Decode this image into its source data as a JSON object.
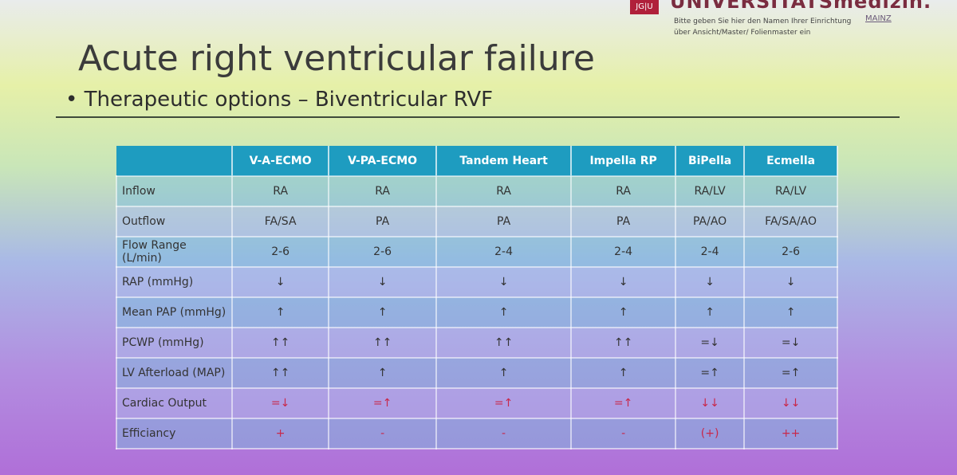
{
  "logo": {
    "mark": "JG|U",
    "name": "UNIVERSITÄTSmedizin.",
    "note": "Bitte geben Sie hier den Namen Ihrer Einrichtung über Ansicht/Master/ Folienmaster ein",
    "city": "MAINZ"
  },
  "slide": {
    "title": "Acute right ventricular failure",
    "bullet": "Therapeutic options – Biventricular RVF"
  },
  "table": {
    "header": [
      "V-A-ECMO",
      "V-PA-ECMO",
      "Tandem Heart",
      "Impella RP",
      "BiPella",
      "Ecmella"
    ],
    "rows": [
      [
        "Inflow",
        "RA",
        "RA",
        "RA",
        "RA",
        "RA/LV",
        "RA/LV"
      ],
      [
        "Outflow",
        "FA/SA",
        "PA",
        "PA",
        "PA",
        "PA/AO",
        "FA/SA/AO"
      ],
      [
        "Flow Range (L/min)",
        "2-6",
        "2-6",
        "2-4",
        "2-4",
        "2-4",
        "2-6"
      ],
      [
        "RAP (mmHg)",
        "↓",
        "↓",
        "↓",
        "↓",
        "↓",
        "↓"
      ],
      [
        "Mean PAP (mmHg)",
        "↑",
        "↑",
        "↑",
        "↑",
        "↑",
        "↑"
      ],
      [
        "PCWP (mmHg)",
        "↑↑",
        "↑↑",
        "↑↑",
        "↑↑",
        "=↓",
        "=↓"
      ],
      [
        "LV Afterload (MAP)",
        "↑↑",
        "↑",
        "↑",
        "↑",
        "=↑",
        "=↑"
      ],
      [
        "Cardiac Output",
        "=↓",
        "=↑",
        "=↑",
        "=↑",
        "↓↓",
        "↓↓"
      ],
      [
        "Efficiancy",
        "+",
        "-",
        "-",
        "-",
        "(+)",
        "++"
      ]
    ]
  }
}
